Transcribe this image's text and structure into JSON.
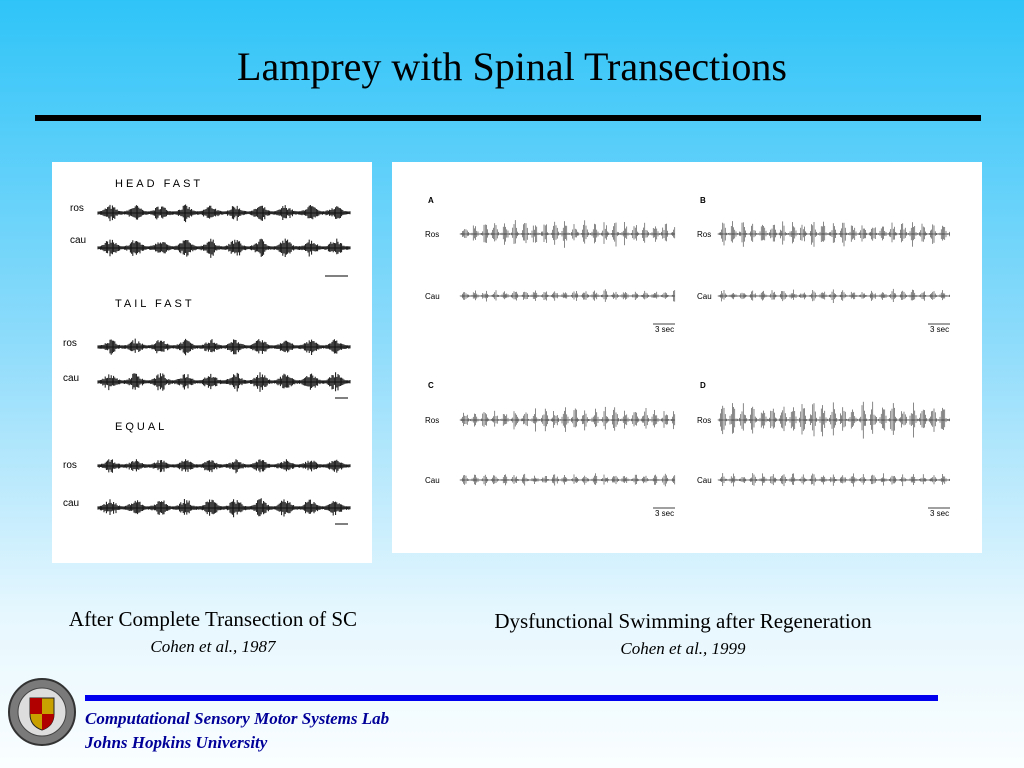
{
  "header": {
    "title": "Lamprey with Spinal Transections"
  },
  "left_figure": {
    "groups": [
      {
        "heading": "HEAD FAST",
        "rows": [
          "ros",
          "cau"
        ]
      },
      {
        "heading": "TAIL FAST",
        "rows": [
          "ros",
          "cau"
        ]
      },
      {
        "heading": "EQUAL",
        "rows": [
          "ros",
          "cau"
        ]
      }
    ]
  },
  "right_figure": {
    "panels": [
      {
        "letter": "A",
        "rows": [
          "Ros",
          "Cau"
        ],
        "scale": "3 sec"
      },
      {
        "letter": "B",
        "rows": [
          "Ros",
          "Cau"
        ],
        "scale": "3 sec"
      },
      {
        "letter": "C",
        "rows": [
          "Ros",
          "Cau"
        ],
        "scale": "3 sec"
      },
      {
        "letter": "D",
        "rows": [
          "Ros",
          "Cau"
        ],
        "scale": "3 sec"
      }
    ]
  },
  "captions": [
    {
      "text": "After Complete Transection of SC",
      "citation": "Cohen et al., 1987"
    },
    {
      "text": "Dysfunctional Swimming after Regeneration",
      "citation": "Cohen et al., 1999"
    }
  ],
  "footer": {
    "lab": "Computational Sensory Motor Systems Lab",
    "university": "Johns Hopkins University"
  }
}
